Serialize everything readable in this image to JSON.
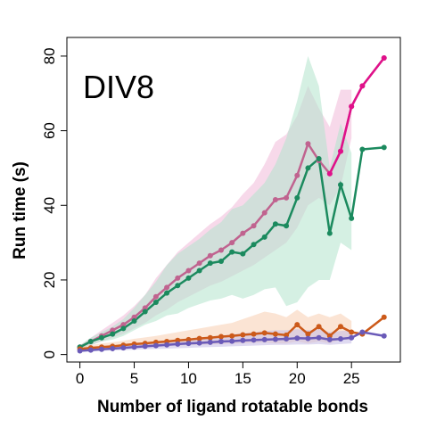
{
  "chart_data": {
    "type": "line",
    "title": "DIV8",
    "xlabel": "Number of ligand rotatable bonds",
    "ylabel": "Run time (s)",
    "xlim": [
      -1.2,
      29.5
    ],
    "ylim": [
      -2,
      85
    ],
    "xticks": [
      0,
      5,
      10,
      15,
      20,
      25
    ],
    "yticks": [
      0,
      20,
      40,
      60,
      80
    ],
    "grid": false,
    "legend": "none",
    "series": [
      {
        "color": "#c0638f",
        "band_color": "#f0b9d8",
        "x": [
          0,
          1,
          2,
          3,
          4,
          5,
          6,
          7,
          8,
          9,
          10,
          11,
          12,
          13,
          14,
          15,
          16,
          17,
          18,
          19,
          20,
          21,
          22,
          23,
          24,
          25,
          26,
          28
        ],
        "y": [
          2,
          3.5,
          5,
          6.5,
          8,
          10,
          12.5,
          15.5,
          18,
          20.5,
          22.5,
          24.5,
          26.5,
          28,
          30,
          32.5,
          34.5,
          38,
          41.5,
          42,
          48,
          56.5,
          52,
          48.5,
          54.5,
          66.5,
          72,
          79.5
        ],
        "lower": [
          1.5,
          2.5,
          3.5,
          4.5,
          5.5,
          7,
          8.5,
          10.5,
          12,
          14,
          15.5,
          17,
          18.5,
          19.5,
          21,
          22.5,
          24,
          26,
          28,
          30,
          34,
          40,
          42,
          40,
          45,
          58,
          null,
          null
        ],
        "upper": [
          2.5,
          4.5,
          6.5,
          8.5,
          10.5,
          13,
          16,
          20.5,
          24,
          27.5,
          30,
          32.5,
          35,
          37,
          39.5,
          43,
          46,
          51,
          57,
          59,
          64,
          72,
          66,
          61,
          71,
          71,
          null,
          null
        ]
      },
      {
        "color": "#1b8a5e",
        "band_color": "#b3e4cc",
        "x": [
          0,
          1,
          2,
          3,
          4,
          5,
          6,
          7,
          8,
          9,
          10,
          11,
          12,
          13,
          14,
          15,
          16,
          17,
          18,
          19,
          20,
          21,
          22,
          23,
          24,
          25,
          26,
          28
        ],
        "y": [
          2,
          3.5,
          4.5,
          5.5,
          7,
          9,
          11.5,
          14,
          16.5,
          18.5,
          20.5,
          22.5,
          24.5,
          25,
          27.5,
          27,
          29.5,
          31.5,
          35,
          34.5,
          42,
          50,
          52.5,
          32.5,
          45.5,
          36.5,
          55,
          55.5
        ],
        "lower": [
          1.5,
          2.5,
          3.5,
          4,
          5,
          6.5,
          8,
          9,
          10.5,
          11,
          12.5,
          13.5,
          14.5,
          15,
          16,
          15,
          16,
          17.5,
          18,
          13,
          14,
          18,
          20,
          20,
          30,
          28,
          null,
          null
        ],
        "upper": [
          2.5,
          4.5,
          6,
          7.5,
          9.5,
          12.5,
          16,
          19.5,
          24,
          27,
          29,
          31,
          33.5,
          35.5,
          39,
          40,
          43,
          46,
          51,
          58,
          68,
          80,
          72,
          50,
          62,
          54,
          null,
          null
        ]
      },
      {
        "color": "#cc5a1a",
        "band_color": "#f8cdb0",
        "x": [
          0,
          1,
          2,
          3,
          4,
          5,
          6,
          7,
          8,
          9,
          10,
          11,
          12,
          13,
          14,
          15,
          16,
          17,
          18,
          19,
          20,
          21,
          22,
          23,
          24,
          25,
          26,
          28
        ],
        "y": [
          1.5,
          1.8,
          2,
          2.2,
          2.5,
          2.8,
          3,
          3.3,
          3.5,
          3.8,
          4,
          4.3,
          4.5,
          4.8,
          5,
          5.3,
          5.5,
          5.8,
          5.5,
          5.2,
          8,
          5.5,
          7.5,
          5,
          7.5,
          6,
          5.5,
          10
        ],
        "lower": [
          1.2,
          1.3,
          1.5,
          1.6,
          1.8,
          2,
          2.1,
          2.2,
          2.3,
          2.4,
          2.5,
          2.6,
          2.7,
          2.8,
          2.9,
          3,
          3.1,
          3.2,
          3,
          3,
          3.5,
          3,
          3.5,
          3,
          4,
          4,
          null,
          null
        ],
        "upper": [
          2,
          2.5,
          3,
          3.3,
          3.7,
          4.2,
          4.6,
          5,
          5.5,
          6,
          6.5,
          7,
          7.5,
          8,
          8.5,
          9.5,
          10.5,
          11.5,
          11,
          10,
          12,
          10,
          11,
          10,
          11,
          9,
          null,
          null
        ]
      },
      {
        "color": "#6a5ab8",
        "band_color": "#c4bce6",
        "x": [
          0,
          1,
          2,
          3,
          4,
          5,
          6,
          7,
          8,
          9,
          10,
          11,
          12,
          13,
          14,
          15,
          16,
          17,
          18,
          19,
          20,
          21,
          22,
          23,
          24,
          25,
          26,
          28
        ],
        "y": [
          1,
          1.2,
          1.4,
          1.6,
          1.8,
          2,
          2.2,
          2.4,
          2.6,
          2.8,
          3,
          3.1,
          3.3,
          3.5,
          3.6,
          3.8,
          3.9,
          4,
          4.1,
          4.2,
          4.4,
          4.3,
          4.5,
          4,
          4.2,
          4.5,
          6,
          5
        ],
        "lower": [
          0.8,
          0.9,
          1,
          1.1,
          1.2,
          1.3,
          1.4,
          1.5,
          1.6,
          1.7,
          1.8,
          1.9,
          2,
          2.1,
          2.2,
          2.3,
          2.4,
          2.5,
          2.6,
          2.6,
          2.7,
          2.7,
          2.8,
          2.6,
          2.8,
          3,
          null,
          null
        ],
        "upper": [
          1.3,
          1.5,
          1.8,
          2.1,
          2.4,
          2.7,
          3,
          3.3,
          3.6,
          3.9,
          4.2,
          4.5,
          4.8,
          5.1,
          5.4,
          5.7,
          6,
          6.3,
          6.5,
          6.5,
          6.8,
          6.5,
          6.8,
          6,
          6.3,
          6.5,
          null,
          null
        ]
      }
    ],
    "extra_segments": [
      {
        "color": "#e0108a",
        "x": [
          23,
          24,
          25,
          26,
          28
        ],
        "y": [
          48.5,
          54.5,
          66.5,
          72,
          79.5
        ]
      }
    ]
  }
}
